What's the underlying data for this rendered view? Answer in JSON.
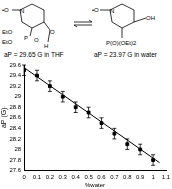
{
  "chart_data": {
    "type": "scatter",
    "annotations": [
      "aP = 29.65 G in THF",
      "aP = 23.97 G in water"
    ],
    "x_label": "%water",
    "y_label": "aP (G)",
    "series": [
      {
        "type": "scatter",
        "marker": "square",
        "color": "#000000",
        "x": [
          0,
          0.1,
          0.2,
          0.3,
          0.4,
          0.5,
          0.6,
          0.7,
          0.8,
          0.9,
          1.0
        ],
        "values": [
          29.5,
          29.4,
          29.2,
          29.0,
          28.8,
          28.7,
          28.5,
          28.3,
          28.1,
          28.0,
          27.8
        ],
        "error": [
          0.1,
          0.1,
          0.1,
          0.1,
          0.1,
          0.1,
          0.1,
          0.1,
          0.1,
          0.1,
          0.1
        ]
      },
      {
        "type": "line",
        "line_style": "solid",
        "color": "#000000",
        "x": [
          0,
          1.05
        ],
        "values": [
          29.55,
          27.75
        ]
      }
    ],
    "xlim": [
      0,
      1.1
    ],
    "xticks": [
      0,
      0.1,
      0.2,
      0.3,
      0.4,
      0.5,
      0.6,
      0.7,
      0.8,
      0.9,
      1,
      1.1
    ],
    "ylim": [
      27.6,
      29.6
    ],
    "yticks": [
      27.6,
      27.8,
      28,
      28.2,
      28.4,
      28.6,
      28.8,
      29,
      29.2,
      29.4,
      29.6
    ],
    "grid": false
  },
  "scheme": {
    "left": [
      "•O",
      "N",
      "EtO",
      "EtO",
      "P",
      "O",
      "H",
      "O"
    ],
    "right": [
      "•O",
      "N",
      "OH",
      "P(O)(OEt)2"
    ]
  }
}
